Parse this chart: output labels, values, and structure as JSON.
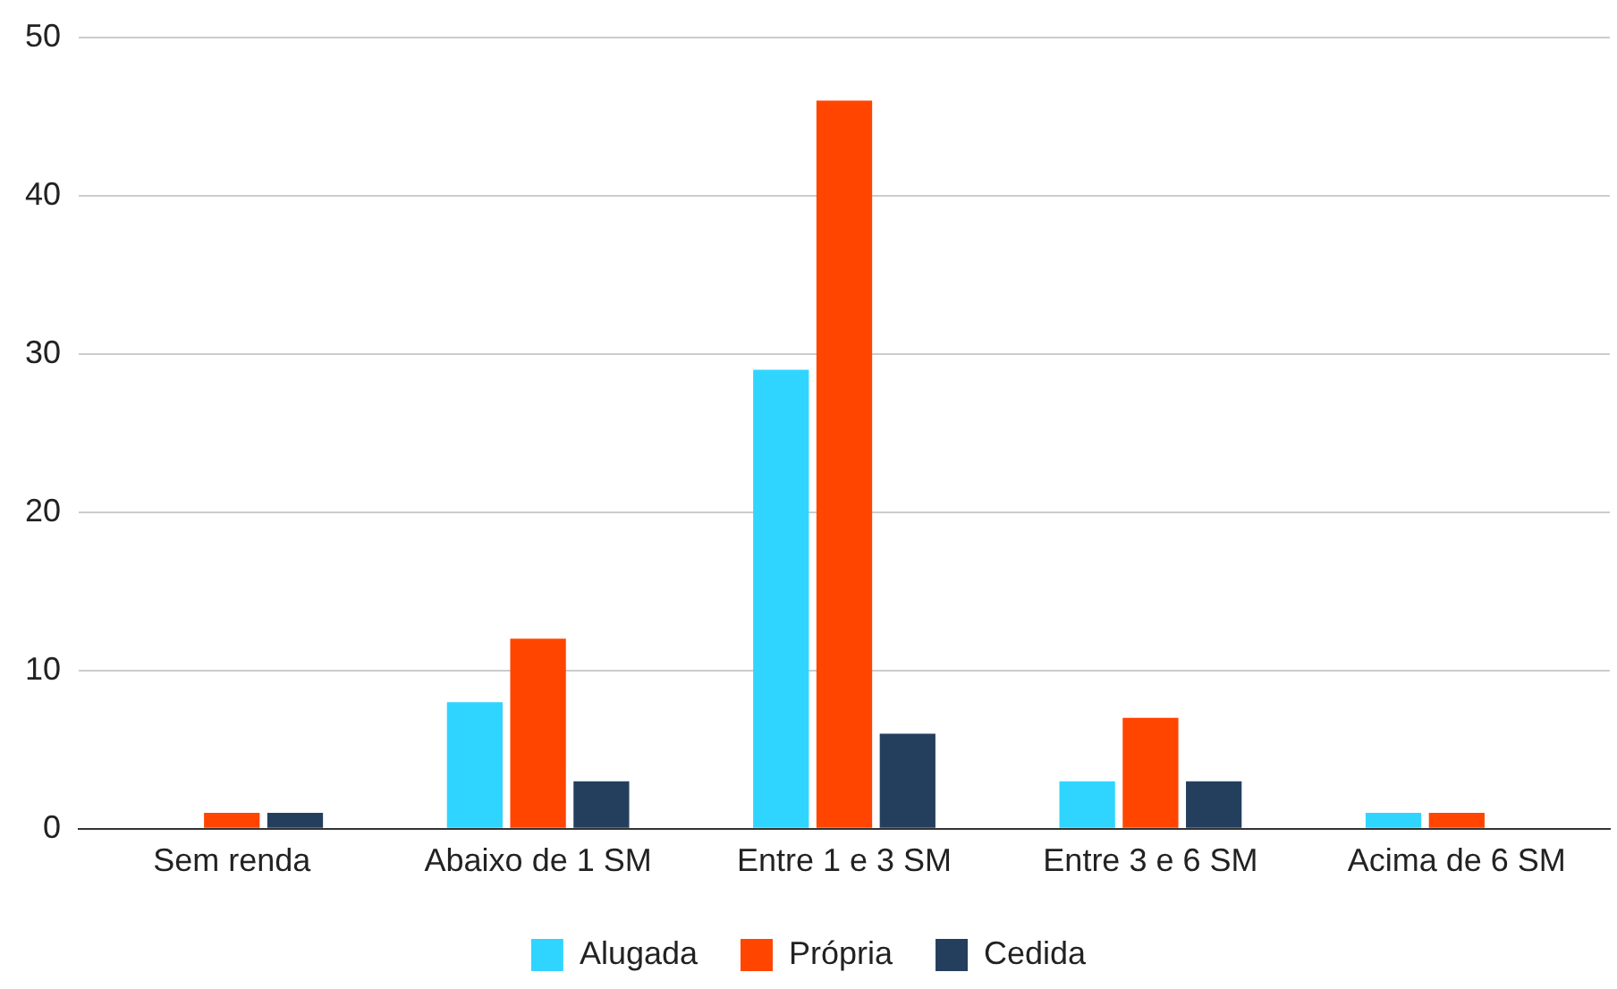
{
  "chart_data": {
    "type": "bar",
    "categories": [
      "Sem renda",
      "Abaixo de 1 SM",
      "Entre 1 e 3 SM",
      "Entre 3 e 6 SM",
      "Acima de 6 SM"
    ],
    "series": [
      {
        "name": "Alugada",
        "color": "#30d5ff",
        "values": [
          0,
          8,
          29,
          3,
          1
        ]
      },
      {
        "name": "Própria",
        "color": "#ff4500",
        "values": [
          1,
          12,
          46,
          7,
          1
        ]
      },
      {
        "name": "Cedida",
        "color": "#243f5e",
        "values": [
          1,
          3,
          6,
          3,
          0
        ]
      }
    ],
    "ylim": [
      0,
      50
    ],
    "yticks": [
      0,
      10,
      20,
      30,
      40,
      50
    ],
    "grid": "y",
    "legend": "bottom"
  }
}
